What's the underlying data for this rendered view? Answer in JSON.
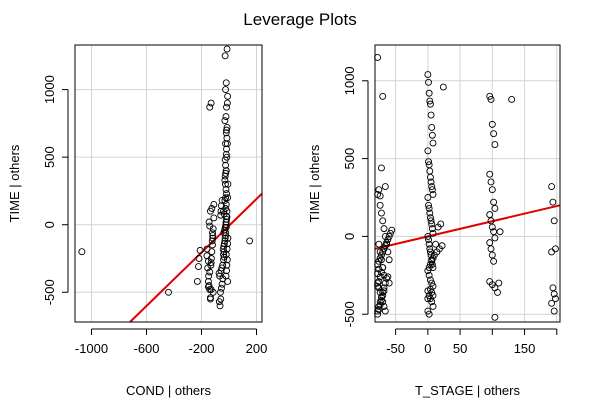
{
  "title": "Leverage Plots",
  "colors": {
    "points": "#000000",
    "fit": "#e00000",
    "grid": "#d3d3d3"
  },
  "chart_data": [
    {
      "type": "scatter",
      "xlabel": "COND | others",
      "ylabel": "TIME | others",
      "xlim": [
        -1120,
        240
      ],
      "ylim": [
        -720,
        1330
      ],
      "xticks": [
        -1000,
        -600,
        -200,
        200
      ],
      "xtick_labels": [
        "-1000",
        "-600",
        "-200",
        "200"
      ],
      "yticks": [
        -500,
        0,
        500,
        1000
      ],
      "ytick_labels": [
        "-500",
        "0",
        "500",
        "1000"
      ],
      "grid": true,
      "fit_line": {
        "x": [
          -720,
          240
        ],
        "y": [
          -720,
          230
        ]
      },
      "x": [
        -1070,
        -440,
        -230,
        -222,
        -218,
        -210,
        -150,
        -145,
        -140,
        -135,
        -132,
        -128,
        -125,
        -122,
        -118,
        -115,
        -110,
        -160,
        -160,
        -150,
        -155,
        -140,
        -148,
        -150,
        -130,
        -115,
        -135,
        -130,
        -120,
        -118,
        -140,
        -130,
        -145,
        -135,
        -110,
        -125,
        -120,
        -140,
        -60,
        -58,
        -55,
        -50,
        -65,
        -70,
        -60,
        -62,
        -55,
        -50,
        -45,
        -68,
        -72,
        -58,
        -52,
        -46,
        -40,
        -35,
        -40,
        -36,
        -42,
        -38,
        -34,
        -30,
        -28,
        -25,
        -38,
        -32,
        -28,
        -22,
        -20,
        -18,
        -15,
        -35,
        -40,
        -25,
        -20,
        -30,
        -25,
        -18,
        -22,
        -26,
        -30,
        -28,
        -24,
        -20,
        -25,
        -28,
        -20,
        -18,
        -25,
        -15,
        -20,
        -14,
        -30,
        -22,
        -18,
        -12,
        -10,
        -25,
        -20,
        -28,
        -14,
        -10,
        -22,
        -18,
        -16,
        -12,
        -20,
        -14,
        -10,
        -8,
        -24,
        -20,
        -22,
        -18,
        -15,
        -10,
        -8,
        -20,
        -16,
        -12,
        -18,
        150
      ],
      "y": [
        -200,
        -500,
        -420,
        -310,
        -250,
        -190,
        -420,
        -450,
        -480,
        -550,
        -300,
        -250,
        -200,
        -120,
        -80,
        -30,
        50,
        -180,
        -230,
        -270,
        -320,
        -350,
        -380,
        -460,
        -480,
        -500,
        -540,
        -280,
        -150,
        -100,
        870,
        900,
        20,
        100,
        150,
        120,
        -60,
        -10,
        70,
        100,
        140,
        180,
        -600,
        -570,
        -550,
        -500,
        -470,
        -440,
        -400,
        -380,
        -360,
        -340,
        -320,
        -300,
        -260,
        -240,
        -220,
        -200,
        -180,
        -160,
        -140,
        -120,
        -100,
        -80,
        -60,
        -40,
        -20,
        0,
        20,
        40,
        60,
        80,
        100,
        120,
        150,
        180,
        200,
        230,
        260,
        300,
        330,
        360,
        380,
        400,
        440,
        480,
        520,
        560,
        600,
        640,
        680,
        720,
        770,
        800,
        870,
        900,
        950,
        1000,
        1050,
        1250,
        1300,
        -420,
        -380,
        -340,
        -300,
        -260,
        -220,
        -180,
        -140,
        -100,
        -60,
        -20,
        20,
        60,
        100,
        200,
        300,
        400,
        500,
        600,
        700,
        -120
      ],
      "series": []
    },
    {
      "type": "scatter",
      "xlabel": "T_STAGE | others",
      "ylabel": "TIME | others",
      "xlim": [
        -82,
        205
      ],
      "ylim": [
        -550,
        1230
      ],
      "xticks": [
        -50,
        0,
        50,
        150
      ],
      "xtick_labels": [
        "-50",
        "0",
        "50",
        "150"
      ],
      "xticks_minor": [
        100,
        200
      ],
      "yticks": [
        -500,
        0,
        500,
        1000
      ],
      "ytick_labels": [
        "-500",
        "0",
        "500",
        "1000"
      ],
      "grid": true,
      "fit_line": {
        "x": [
          -82,
          205
        ],
        "y": [
          -80,
          200
        ]
      },
      "x": [
        -78,
        -76,
        -74,
        -72,
        -70,
        -68,
        -78,
        -76,
        -74,
        -72,
        -70,
        -68,
        -66,
        -64,
        -62,
        -60,
        -78,
        -76,
        -74,
        -72,
        -70,
        -68,
        -66,
        -78,
        -76,
        -74,
        -72,
        -70,
        -68,
        -78,
        -76,
        -74,
        -72,
        -70,
        -78,
        -76,
        -74,
        -72,
        -70,
        -68,
        -66,
        -64,
        -62,
        -60,
        -58,
        -56,
        -78,
        -76,
        -74,
        -72,
        -70,
        -68,
        -66,
        -64,
        -78,
        -76,
        -70,
        -72,
        -74,
        -66,
        -62,
        -60,
        0,
        1,
        2,
        3,
        4,
        5,
        6,
        7,
        8,
        0,
        1,
        2,
        3,
        4,
        5,
        6,
        7,
        8,
        0,
        1,
        2,
        3,
        4,
        5,
        6,
        7,
        8,
        0,
        1,
        2,
        3,
        4,
        5,
        6,
        7,
        8,
        0,
        2,
        4,
        6,
        8,
        0,
        2,
        4,
        6,
        8,
        0,
        2,
        4,
        6,
        8,
        0,
        2,
        4,
        6,
        8,
        10,
        14,
        18,
        22,
        12,
        16,
        20,
        24,
        96,
        98,
        100,
        102,
        104,
        96,
        98,
        100,
        102,
        104,
        96,
        98,
        100,
        102,
        104,
        96,
        98,
        100,
        102,
        104,
        96,
        100,
        104,
        108,
        110,
        112,
        130,
        192,
        194,
        196,
        198,
        192,
        194,
        196,
        198,
        192,
        196
      ],
      "y": [
        1150,
        -50,
        -100,
        -150,
        -200,
        -250,
        270,
        300,
        200,
        150,
        100,
        50,
        0,
        -50,
        -100,
        -150,
        -300,
        -330,
        -360,
        -390,
        -420,
        -450,
        -480,
        -500,
        -470,
        -440,
        -410,
        -380,
        -350,
        -320,
        -290,
        -260,
        -230,
        -200,
        -180,
        -160,
        -140,
        -120,
        -100,
        -80,
        -60,
        -40,
        -20,
        0,
        20,
        40,
        -480,
        -450,
        -420,
        -390,
        -360,
        -330,
        -300,
        -270,
        -240,
        -210,
        900,
        440,
        260,
        320,
        -260,
        -300,
        1040,
        990,
        920,
        870,
        850,
        780,
        700,
        650,
        600,
        550,
        480,
        460,
        420,
        380,
        350,
        320,
        300,
        270,
        250,
        200,
        180,
        150,
        120,
        100,
        80,
        50,
        20,
        0,
        -20,
        -50,
        -80,
        -100,
        -120,
        -150,
        -180,
        -200,
        -220,
        -250,
        -280,
        -300,
        -320,
        -350,
        -380,
        -400,
        -420,
        -450,
        -480,
        -500,
        -340,
        -360,
        -380,
        -400,
        -200,
        -180,
        -160,
        -140,
        -120,
        -100,
        -80,
        -60,
        -50,
        60,
        80,
        960,
        900,
        880,
        720,
        660,
        590,
        400,
        350,
        300,
        220,
        180,
        140,
        100,
        60,
        30,
        -10,
        -40,
        -80,
        -120,
        -160,
        -520,
        -290,
        -310,
        -330,
        -360,
        -300,
        30,
        880,
        320,
        220,
        100,
        -80,
        -100,
        -330,
        -370,
        -400,
        -430,
        -480
      ]
    }
  ]
}
